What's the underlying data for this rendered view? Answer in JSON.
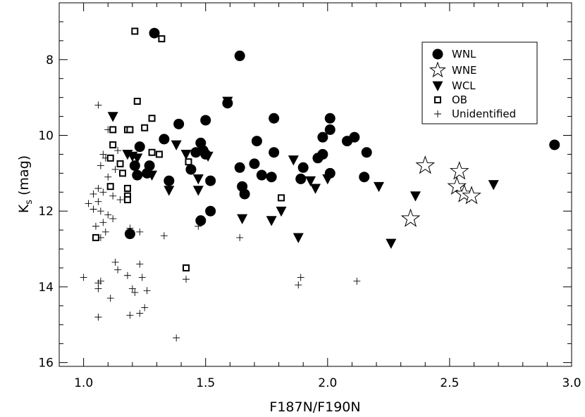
{
  "chart_data": {
    "type": "scatter",
    "title": "",
    "xlabel": "F187N/F190N",
    "ylabel_main": "K",
    "ylabel_sub": "s",
    "ylabel_rest": " (mag)",
    "xlim": [
      0.9,
      3.0
    ],
    "ylim": [
      6.5,
      16.1
    ],
    "y_inverted": true,
    "grid": false,
    "legend_position": "top-right",
    "x_ticks": [
      1.0,
      1.5,
      2.0,
      2.5,
      3.0
    ],
    "x_tick_labels": [
      "1.0",
      "1.5",
      "2.0",
      "2.5",
      "3.0"
    ],
    "y_ticks": [
      8,
      10,
      12,
      14,
      16
    ],
    "y_tick_labels": [
      "8",
      "10",
      "12",
      "14",
      "16"
    ],
    "series": [
      {
        "name": "WNL",
        "marker": "filled-circle",
        "points": [
          [
            1.29,
            7.3
          ],
          [
            1.64,
            7.9
          ],
          [
            1.59,
            9.15
          ],
          [
            1.5,
            9.6
          ],
          [
            1.39,
            9.7
          ],
          [
            1.33,
            10.1
          ],
          [
            1.23,
            10.3
          ],
          [
            1.27,
            10.8
          ],
          [
            1.21,
            10.8
          ],
          [
            1.22,
            11.05
          ],
          [
            1.26,
            11.0
          ],
          [
            1.35,
            11.2
          ],
          [
            1.44,
            10.9
          ],
          [
            1.46,
            10.45
          ],
          [
            1.48,
            10.2
          ],
          [
            1.49,
            10.4
          ],
          [
            1.5,
            10.5
          ],
          [
            1.52,
            11.2
          ],
          [
            1.48,
            12.25
          ],
          [
            1.52,
            12.0
          ],
          [
            1.19,
            12.6
          ],
          [
            1.64,
            10.85
          ],
          [
            1.65,
            11.35
          ],
          [
            1.66,
            11.55
          ],
          [
            1.7,
            10.75
          ],
          [
            1.71,
            10.15
          ],
          [
            1.73,
            11.05
          ],
          [
            1.77,
            11.1
          ],
          [
            1.78,
            9.55
          ],
          [
            1.78,
            10.45
          ],
          [
            1.89,
            11.15
          ],
          [
            1.9,
            10.85
          ],
          [
            1.96,
            10.6
          ],
          [
            1.98,
            10.05
          ],
          [
            1.98,
            10.5
          ],
          [
            2.01,
            9.55
          ],
          [
            2.01,
            9.85
          ],
          [
            2.01,
            11.0
          ],
          [
            2.08,
            10.15
          ],
          [
            2.11,
            10.05
          ],
          [
            2.15,
            11.1
          ],
          [
            2.16,
            10.45
          ],
          [
            2.93,
            10.25
          ]
        ]
      },
      {
        "name": "WNE",
        "marker": "open-star",
        "points": [
          [
            2.4,
            10.8
          ],
          [
            2.34,
            12.2
          ],
          [
            2.54,
            10.95
          ],
          [
            2.53,
            11.35
          ],
          [
            2.56,
            11.55
          ],
          [
            2.59,
            11.6
          ]
        ]
      },
      {
        "name": "WCL",
        "marker": "filled-down-triangle",
        "points": [
          [
            1.12,
            9.5
          ],
          [
            1.18,
            10.5
          ],
          [
            1.2,
            10.55
          ],
          [
            1.22,
            10.6
          ],
          [
            1.28,
            11.05
          ],
          [
            1.35,
            11.45
          ],
          [
            1.38,
            10.25
          ],
          [
            1.42,
            10.5
          ],
          [
            1.47,
            11.15
          ],
          [
            1.47,
            11.45
          ],
          [
            1.51,
            10.55
          ],
          [
            1.59,
            9.1
          ],
          [
            1.65,
            11.45
          ],
          [
            1.65,
            12.2
          ],
          [
            1.77,
            12.25
          ],
          [
            1.81,
            12.0
          ],
          [
            1.86,
            10.65
          ],
          [
            1.88,
            12.7
          ],
          [
            1.93,
            11.2
          ],
          [
            1.95,
            11.4
          ],
          [
            2.0,
            11.15
          ],
          [
            2.21,
            11.35
          ],
          [
            2.26,
            12.85
          ],
          [
            2.36,
            11.6
          ],
          [
            2.68,
            11.3
          ]
        ]
      },
      {
        "name": "OB",
        "marker": "open-square",
        "points": [
          [
            1.21,
            7.25
          ],
          [
            1.32,
            7.45
          ],
          [
            1.22,
            9.1
          ],
          [
            1.28,
            9.55
          ],
          [
            1.25,
            9.8
          ],
          [
            1.18,
            9.85
          ],
          [
            1.19,
            9.85
          ],
          [
            1.12,
            9.85
          ],
          [
            1.12,
            10.25
          ],
          [
            1.11,
            10.6
          ],
          [
            1.28,
            10.45
          ],
          [
            1.31,
            10.5
          ],
          [
            1.15,
            10.75
          ],
          [
            1.43,
            10.7
          ],
          [
            1.16,
            11.0
          ],
          [
            1.11,
            11.35
          ],
          [
            1.18,
            11.4
          ],
          [
            1.18,
            11.6
          ],
          [
            1.18,
            11.7
          ],
          [
            1.81,
            11.65
          ],
          [
            1.05,
            12.7
          ],
          [
            1.42,
            13.5
          ]
        ]
      },
      {
        "name": "Unidentified",
        "marker": "plus",
        "points": [
          [
            1.06,
            9.2
          ],
          [
            1.1,
            9.85
          ],
          [
            1.08,
            10.5
          ],
          [
            1.09,
            10.6
          ],
          [
            1.14,
            10.4
          ],
          [
            1.07,
            10.8
          ],
          [
            1.13,
            10.9
          ],
          [
            1.1,
            11.1
          ],
          [
            1.06,
            11.4
          ],
          [
            1.04,
            11.55
          ],
          [
            1.08,
            11.5
          ],
          [
            1.12,
            11.6
          ],
          [
            1.15,
            11.7
          ],
          [
            1.02,
            11.8
          ],
          [
            1.06,
            11.75
          ],
          [
            1.04,
            11.95
          ],
          [
            1.07,
            12.0
          ],
          [
            1.1,
            12.1
          ],
          [
            1.12,
            12.2
          ],
          [
            1.08,
            12.3
          ],
          [
            1.05,
            12.4
          ],
          [
            1.09,
            12.55
          ],
          [
            1.07,
            12.7
          ],
          [
            1.23,
            12.55
          ],
          [
            1.33,
            12.65
          ],
          [
            1.19,
            12.45
          ],
          [
            1.47,
            12.4
          ],
          [
            1.64,
            12.7
          ],
          [
            1.0,
            13.75
          ],
          [
            1.06,
            13.9
          ],
          [
            1.07,
            13.85
          ],
          [
            1.06,
            14.05
          ],
          [
            1.13,
            13.35
          ],
          [
            1.14,
            13.55
          ],
          [
            1.18,
            13.7
          ],
          [
            1.2,
            14.05
          ],
          [
            1.21,
            14.15
          ],
          [
            1.11,
            14.3
          ],
          [
            1.23,
            13.4
          ],
          [
            1.24,
            13.75
          ],
          [
            1.26,
            14.1
          ],
          [
            1.25,
            14.55
          ],
          [
            1.19,
            14.75
          ],
          [
            1.06,
            14.8
          ],
          [
            1.23,
            14.7
          ],
          [
            1.42,
            13.8
          ],
          [
            1.38,
            15.35
          ],
          [
            1.89,
            13.75
          ],
          [
            1.88,
            13.95
          ],
          [
            2.12,
            13.85
          ]
        ]
      }
    ]
  }
}
